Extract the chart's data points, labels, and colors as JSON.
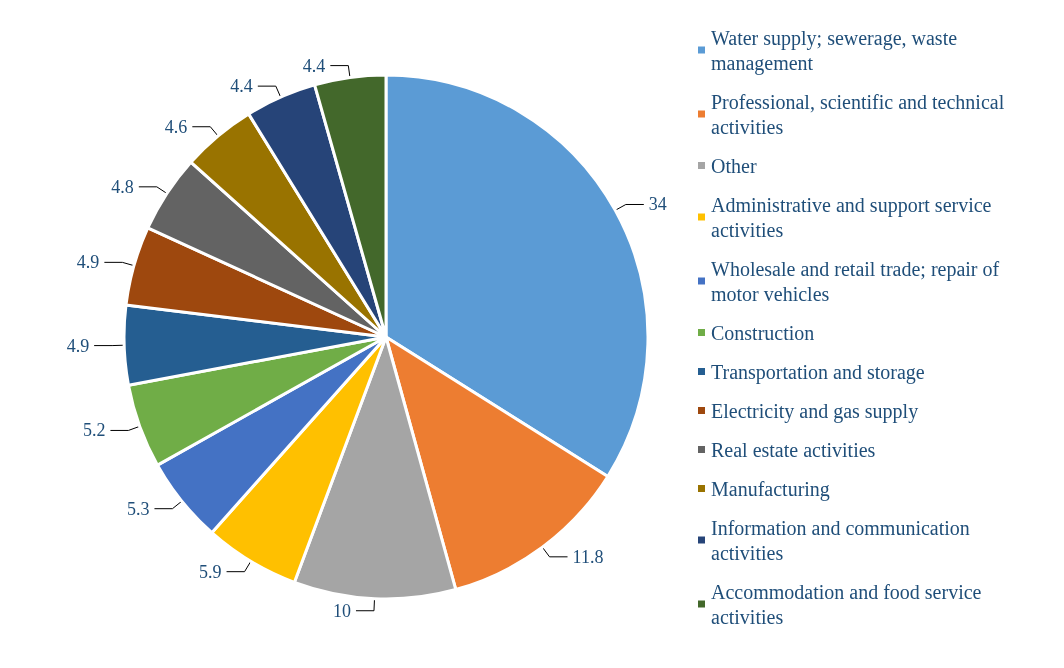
{
  "chart_data": {
    "type": "pie",
    "categories": [
      "Water supply; sewerage, waste management",
      "Professional, scientific and technical activities",
      "Other",
      "Administrative and support service activities",
      "Wholesale and retail trade; repair of motor vehicles",
      "Construction",
      "Transportation and storage",
      "Electricity and gas supply",
      "Real estate activities",
      "Manufacturing",
      "Information and communication activities",
      "Accommodation and food service activities"
    ],
    "values": [
      34,
      11.8,
      10,
      5.9,
      5.3,
      5.2,
      4.9,
      4.9,
      4.8,
      4.6,
      4.4,
      4.4
    ],
    "colors": [
      "#5b9bd5",
      "#ed7d31",
      "#a5a5a5",
      "#ffc000",
      "#4472c4",
      "#70ad47",
      "#255e91",
      "#9e480e",
      "#636363",
      "#997300",
      "#264478",
      "#43682b"
    ],
    "data_labels": true,
    "legend": "right"
  }
}
